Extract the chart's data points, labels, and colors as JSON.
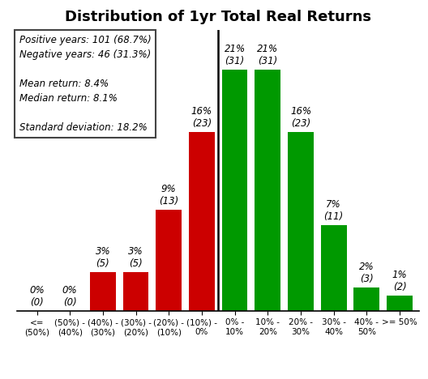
{
  "title": "Distribution of 1yr Total Real Returns",
  "categories": [
    "<=\n(50%)",
    "(50%) -\n(40%)",
    "(40%) -\n(30%)",
    "(30%) -\n(20%)",
    "(20%) -\n(10%)",
    "(10%) -\n0%",
    "0% -\n10%",
    "10% -\n20%",
    "20% -\n30%",
    "30% -\n40%",
    "40% -\n50%",
    ">= 50%"
  ],
  "values": [
    0,
    0,
    5,
    5,
    13,
    23,
    31,
    31,
    23,
    11,
    3,
    2
  ],
  "pcts": [
    0,
    0,
    3,
    3,
    9,
    16,
    21,
    21,
    16,
    7,
    2,
    1
  ],
  "colors": [
    "#cc0000",
    "#cc0000",
    "#cc0000",
    "#cc0000",
    "#cc0000",
    "#cc0000",
    "#009900",
    "#009900",
    "#009900",
    "#009900",
    "#009900",
    "#009900"
  ],
  "annotation_text": "Positive years: 101 (68.7%)\nNegative years: 46 (31.3%)\n\nMean return: 8.4%\nMedian return: 8.1%\n\nStandard deviation: 18.2%",
  "ylim": [
    0,
    36
  ],
  "title_fontsize": 13,
  "tick_fontsize": 7.5,
  "bar_label_fontsize": 8.5,
  "annot_fontsize": 8.5
}
